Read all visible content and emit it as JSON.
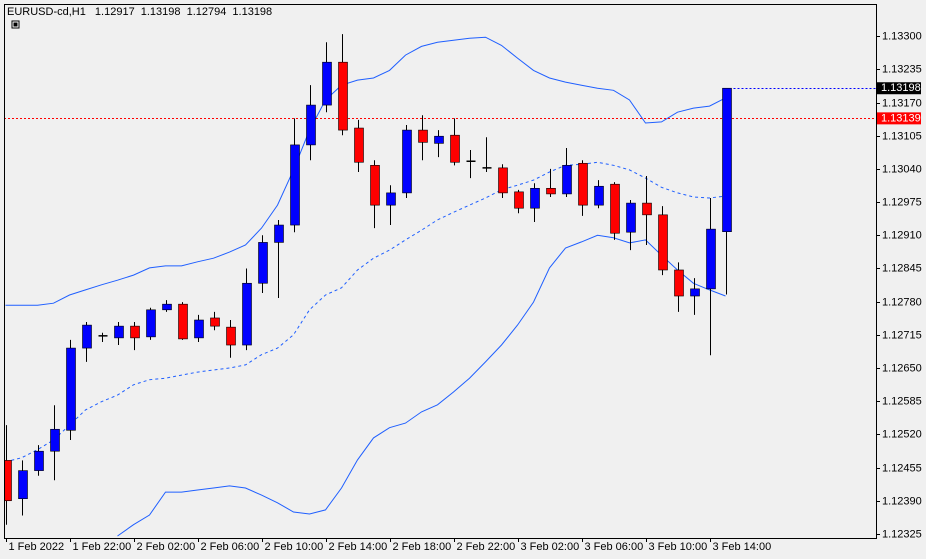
{
  "chart_data": {
    "type": "candlestick",
    "title": "EURUSD-cd,H1",
    "categories": [
      "1 Feb 2022",
      null,
      null,
      null,
      "1 Feb 22:00",
      null,
      null,
      null,
      "2 Feb 02:00",
      null,
      null,
      null,
      "2 Feb 06:00",
      null,
      null,
      null,
      "2 Feb 10:00",
      null,
      null,
      null,
      "2 Feb 14:00",
      null,
      null,
      null,
      "2 Feb 18:00",
      null,
      null,
      null,
      "2 Feb 22:00",
      null,
      null,
      null,
      "3 Feb 02:00",
      null,
      null,
      null,
      "3 Feb 06:00",
      null,
      null,
      null,
      "3 Feb 10:00",
      null,
      null,
      null,
      "3 Feb 14:00",
      null
    ],
    "open": [
      1.12469,
      1.12394,
      1.12449,
      1.12487,
      1.12528,
      1.12689,
      1.12711,
      1.12709,
      1.12732,
      1.12711,
      1.12764,
      1.12775,
      1.12709,
      1.12748,
      1.1273,
      1.12695,
      1.12816,
      1.12896,
      1.1293,
      1.13087,
      1.13165,
      1.13249,
      1.1312,
      1.13047,
      1.12969,
      1.12993,
      1.13116,
      1.1309,
      1.13106,
      1.13055,
      1.13042,
      1.13042,
      1.12995,
      1.12963,
      1.13002,
      1.12991,
      1.13051,
      1.12969,
      1.1301,
      1.12916,
      1.12973,
      1.1295,
      1.12842,
      1.12791,
      1.12805,
      1.12917
    ],
    "high": [
      1.12538,
      1.12469,
      1.12499,
      1.12577,
      1.12705,
      1.1274,
      1.12719,
      1.1274,
      1.1274,
      1.12768,
      1.12783,
      1.12779,
      1.12754,
      1.1276,
      1.12744,
      1.12845,
      1.1291,
      1.1294,
      1.13139,
      1.13204,
      1.13288,
      1.13304,
      1.13136,
      1.13057,
      1.13008,
      1.13126,
      1.13145,
      1.13116,
      1.13139,
      1.13077,
      1.13102,
      1.13049,
      1.12999,
      1.13012,
      1.1304,
      1.13081,
      1.13057,
      1.13018,
      1.13014,
      1.12979,
      1.13026,
      1.12967,
      1.12857,
      1.12826,
      1.12983,
      1.13198
    ],
    "low": [
      1.12343,
      1.12361,
      1.12439,
      1.1243,
      1.12509,
      1.12662,
      1.12701,
      1.12695,
      1.12685,
      1.12705,
      1.1276,
      1.12705,
      1.12701,
      1.12724,
      1.1267,
      1.12685,
      1.12797,
      1.12787,
      1.12916,
      1.13057,
      1.13151,
      1.13106,
      1.13034,
      1.12924,
      1.1293,
      1.12983,
      1.13057,
      1.13063,
      1.13047,
      1.13022,
      1.13034,
      1.12983,
      1.12953,
      1.12936,
      1.12985,
      1.12985,
      1.12948,
      1.12963,
      1.12901,
      1.12881,
      1.12891,
      1.12832,
      1.1276,
      1.12754,
      1.12675,
      1.12794
    ],
    "close": [
      1.1239,
      1.12449,
      1.12487,
      1.1253,
      1.12689,
      1.12734,
      1.12713,
      1.12732,
      1.12709,
      1.12764,
      1.12775,
      1.12707,
      1.12744,
      1.12732,
      1.12695,
      1.12816,
      1.12896,
      1.1293,
      1.13087,
      1.13165,
      1.13249,
      1.13116,
      1.13053,
      1.12969,
      1.12993,
      1.13116,
      1.13092,
      1.13104,
      1.13053,
      1.13055,
      1.1304,
      1.12993,
      1.12963,
      1.13002,
      1.12991,
      1.13047,
      1.12969,
      1.13006,
      1.12914,
      1.12973,
      1.1295,
      1.12842,
      1.12791,
      1.12805,
      1.12922,
      1.13198
    ],
    "up_color": "#0000ff",
    "down_color": "#ff0000",
    "wick_color": "#000000",
    "bands": [
      {
        "color": "#1f5fff",
        "dashed": false,
        "values": [
          1.12773,
          1.12773,
          1.12773,
          1.12777,
          1.12793,
          1.12803,
          1.12813,
          1.12822,
          1.12832,
          1.12846,
          1.1285,
          1.1285,
          1.12858,
          1.12865,
          1.12877,
          1.12891,
          1.12924,
          1.12969,
          1.13038,
          1.13116,
          1.13175,
          1.13204,
          1.13214,
          1.13218,
          1.13233,
          1.13263,
          1.1328,
          1.13288,
          1.13292,
          1.13296,
          1.13298,
          1.13282,
          1.13257,
          1.13233,
          1.13218,
          1.1321,
          1.13204,
          1.13198,
          1.13194,
          1.13175,
          1.1313,
          1.13132,
          1.13151,
          1.13159,
          1.13163,
          1.13179
        ]
      },
      {
        "color": "#1f5fff",
        "dashed": true,
        "values": [
          1.12466,
          1.12474,
          1.1249,
          1.12509,
          1.12538,
          1.12568,
          1.12584,
          1.12597,
          1.12617,
          1.12627,
          1.1263,
          1.12636,
          1.12642,
          1.12646,
          1.1265,
          1.12656,
          1.12676,
          1.12689,
          1.12715,
          1.12764,
          1.12793,
          1.12807,
          1.12842,
          1.12865,
          1.12881,
          1.12901,
          1.1292,
          1.1294,
          1.12955,
          1.12969,
          1.12983,
          1.12999,
          1.13008,
          1.13018,
          1.13034,
          1.13047,
          1.13049,
          1.13053,
          1.13047,
          1.13038,
          1.13022,
          1.13004,
          1.12993,
          1.12985,
          1.12983,
          1.12987
        ]
      },
      {
        "color": "#1f5fff",
        "dashed": false,
        "values": [
          null,
          null,
          null,
          null,
          null,
          null,
          null,
          1.12321,
          1.12343,
          1.12362,
          1.12407,
          1.12407,
          1.12411,
          1.12415,
          1.12419,
          1.12415,
          1.12401,
          1.12386,
          1.12368,
          1.12364,
          1.12372,
          1.12415,
          1.1247,
          1.12513,
          1.12533,
          1.12542,
          1.12564,
          1.12578,
          1.12603,
          1.1263,
          1.12662,
          1.12695,
          1.12734,
          1.12779,
          1.12846,
          1.12885,
          1.12897,
          1.1291,
          1.12905,
          1.12895,
          1.12901,
          1.12871,
          1.12842,
          1.12816,
          1.12803,
          1.12791
        ]
      }
    ],
    "price_lines": [
      {
        "value": 1.13139,
        "color": "#ff0000",
        "box_color": "#ff0000",
        "span": "full"
      },
      {
        "value": 1.13198,
        "color": "#0000ff",
        "box_color": "#000000",
        "span": "right"
      }
    ],
    "ylim": [
      1.13363,
      1.12317
    ],
    "yticks": [
      {
        "value": 1.133,
        "label": "1.13300"
      },
      {
        "value": 1.13235,
        "label": "1.13235"
      },
      {
        "value": 1.1317,
        "label": "1.13170"
      },
      {
        "value": 1.13105,
        "label": "1.13105"
      },
      {
        "value": 1.1304,
        "label": "1.13040"
      },
      {
        "value": 1.12975,
        "label": "1.12975"
      },
      {
        "value": 1.1291,
        "label": "1.12910"
      },
      {
        "value": 1.12845,
        "label": "1.12845"
      },
      {
        "value": 1.1278,
        "label": "1.12780"
      },
      {
        "value": 1.12715,
        "label": "1.12715"
      },
      {
        "value": 1.1265,
        "label": "1.12650"
      },
      {
        "value": 1.12585,
        "label": "1.12585"
      },
      {
        "value": 1.1252,
        "label": "1.12520"
      },
      {
        "value": 1.12455,
        "label": "1.12455"
      },
      {
        "value": 1.1239,
        "label": "1.12390"
      },
      {
        "value": 1.12325,
        "label": "1.12325"
      }
    ]
  }
}
